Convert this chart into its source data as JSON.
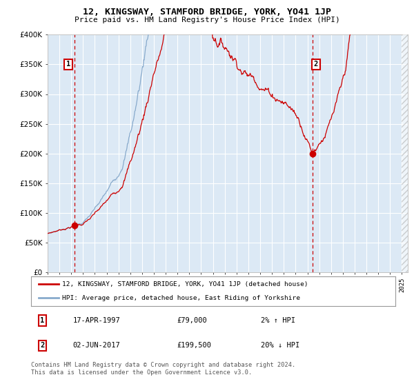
{
  "title": "12, KINGSWAY, STAMFORD BRIDGE, YORK, YO41 1JP",
  "subtitle": "Price paid vs. HM Land Registry's House Price Index (HPI)",
  "legend_line1": "12, KINGSWAY, STAMFORD BRIDGE, YORK, YO41 1JP (detached house)",
  "legend_line2": "HPI: Average price, detached house, East Riding of Yorkshire",
  "annotation1_date": "17-APR-1997",
  "annotation1_price": "£79,000",
  "annotation1_hpi": "2% ↑ HPI",
  "annotation2_date": "02-JUN-2017",
  "annotation2_price": "£199,500",
  "annotation2_hpi": "20% ↓ HPI",
  "copyright_text": "Contains HM Land Registry data © Crown copyright and database right 2024.\nThis data is licensed under the Open Government Licence v3.0.",
  "sale1_date_num": 1997.29,
  "sale1_price": 79000,
  "sale2_date_num": 2017.42,
  "sale2_price": 199500,
  "red_color": "#cc0000",
  "blue_color": "#88aacc",
  "background_color": "#dce9f5",
  "grid_color": "#ffffff",
  "ylim_min": 0,
  "ylim_max": 400000,
  "xlim_min": 1995.0,
  "xlim_max": 2025.5,
  "yticks": [
    0,
    50000,
    100000,
    150000,
    200000,
    250000,
    300000,
    350000,
    400000
  ]
}
